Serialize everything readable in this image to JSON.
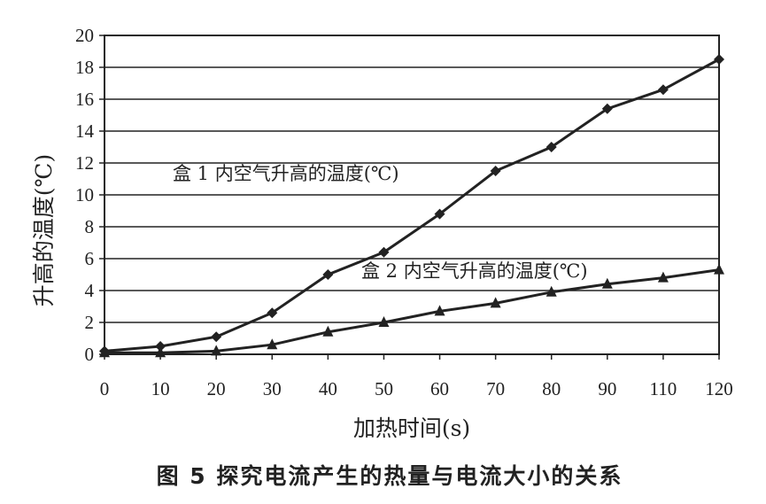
{
  "chart_data": {
    "type": "line",
    "caption": "图 5 探究电流产生的热量与电流大小的关系",
    "x_label": "加热时间(s)",
    "y_label": "升高的温度(℃)",
    "categories": [
      "0",
      "10",
      "20",
      "30",
      "40",
      "50",
      "60",
      "70",
      "80",
      "90",
      "110",
      "120"
    ],
    "series": [
      {
        "name": "盒 1 内空气升高的温度(℃)",
        "color": "#222222",
        "marker": "diamond",
        "values": [
          0.2,
          0.5,
          1.1,
          2.6,
          5.0,
          6.4,
          8.8,
          11.5,
          13.0,
          15.4,
          16.6,
          18.5
        ]
      },
      {
        "name": "盒 2 内空气升高的温度(℃)",
        "color": "#222222",
        "marker": "triangle",
        "values": [
          0.1,
          0.1,
          0.2,
          0.6,
          1.4,
          2.0,
          2.7,
          3.2,
          3.9,
          4.4,
          4.8,
          5.3
        ]
      }
    ],
    "ylim": [
      0,
      20
    ],
    "yticks": [
      0,
      2,
      4,
      6,
      8,
      10,
      12,
      14,
      16,
      18,
      20
    ],
    "grid": true
  }
}
